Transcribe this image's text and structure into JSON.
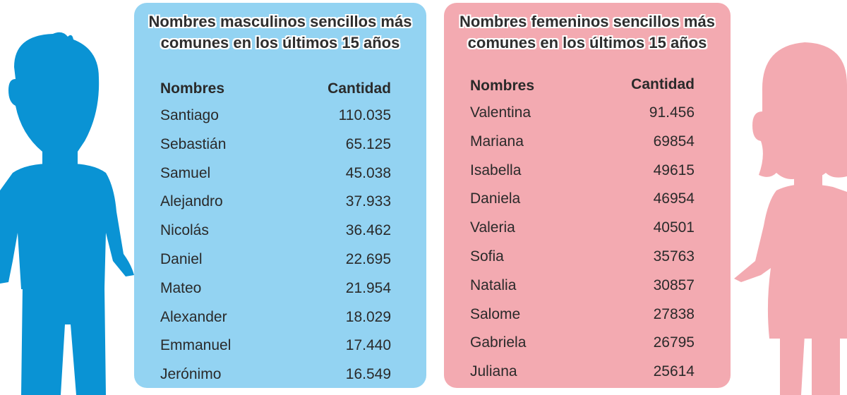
{
  "colors": {
    "male_panel": "#93d3f2",
    "female_panel": "#f3aab1",
    "boy_figure": "#0a93d4",
    "girl_figure": "#f3aab1"
  },
  "icons": {
    "boy": "boy-silhouette-icon",
    "girl": "girl-silhouette-icon"
  },
  "male": {
    "title_line1": "Nombres masculinos sencillos más",
    "title_line2": "comunes en los últimos 15 años",
    "col_names": "Nombres",
    "col_count": "Cantidad",
    "rows": [
      {
        "name": "Santiago",
        "count": "110.035"
      },
      {
        "name": "Sebastián",
        "count": "65.125"
      },
      {
        "name": "Samuel",
        "count": "45.038"
      },
      {
        "name": "Alejandro",
        "count": "37.933"
      },
      {
        "name": "Nicolás",
        "count": "36.462"
      },
      {
        "name": "Daniel",
        "count": "22.695"
      },
      {
        "name": "Mateo",
        "count": "21.954"
      },
      {
        "name": "Alexander",
        "count": "18.029"
      },
      {
        "name": "Emmanuel",
        "count": "17.440"
      },
      {
        "name": "Jerónimo",
        "count": "16.549"
      }
    ]
  },
  "female": {
    "title_line1": "Nombres femeninos sencillos más",
    "title_line2": "comunes en los últimos 15 años",
    "col_names": "Nombres",
    "col_count": "Cantidad",
    "rows": [
      {
        "name": "Valentina",
        "count": "91.456"
      },
      {
        "name": "Mariana",
        "count": "69854"
      },
      {
        "name": "Isabella",
        "count": "49615"
      },
      {
        "name": "Daniela",
        "count": "46954"
      },
      {
        "name": "Valeria",
        "count": "40501"
      },
      {
        "name": "Sofia",
        "count": "35763"
      },
      {
        "name": "Natalia",
        "count": "30857"
      },
      {
        "name": "Salome",
        "count": "27838"
      },
      {
        "name": "Gabriela",
        "count": "26795"
      },
      {
        "name": "Juliana",
        "count": "25614"
      }
    ]
  }
}
